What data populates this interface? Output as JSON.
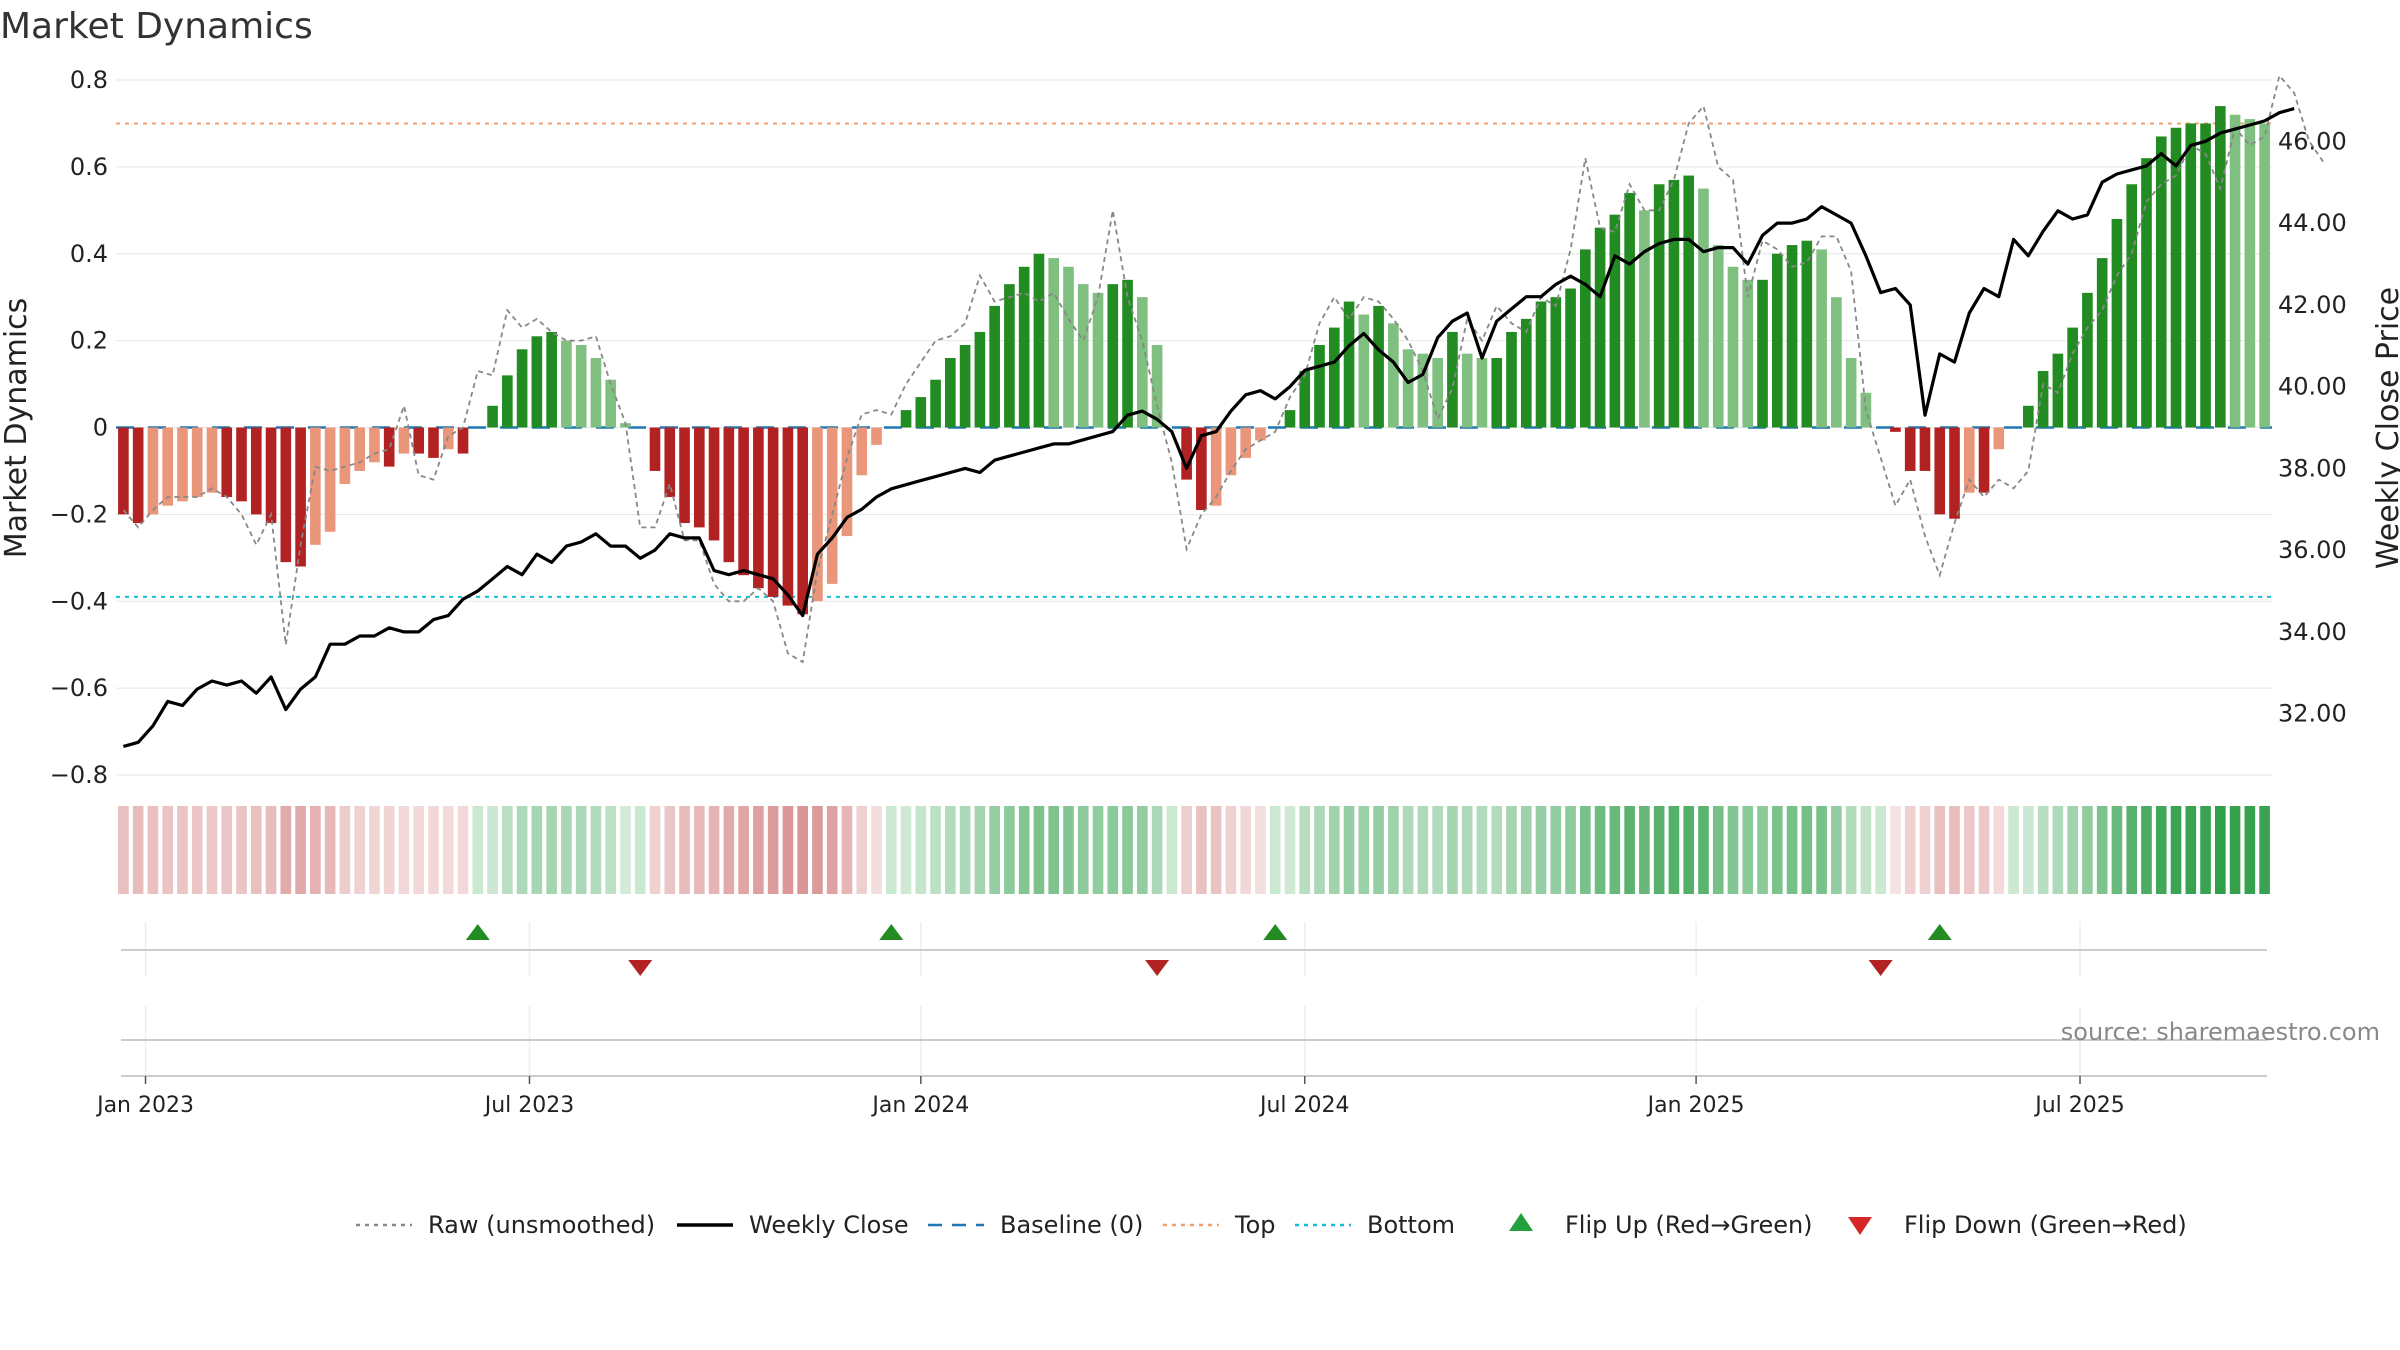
{
  "chart_data": {
    "type": "bar",
    "title": "Market Dynamics",
    "ylabel_left": "Market Dynamics",
    "ylabel_right": "Weekly Close Price",
    "source": "source: sharemaestro.com",
    "ylim_left": [
      -0.8,
      0.8
    ],
    "ylim_right": [
      30.5,
      47.5
    ],
    "left_ticks": [
      "0.8",
      "0.6",
      "0.4",
      "0.2",
      "0",
      "−0.2",
      "−0.4",
      "−0.6",
      "−0.8"
    ],
    "right_ticks": [
      "46.00",
      "44.00",
      "42.00",
      "40.00",
      "38.00",
      "36.00",
      "34.00",
      "32.00"
    ],
    "x_ticks": [
      {
        "label": "Jan 2023",
        "week": 2
      },
      {
        "label": "Jul 2023",
        "week": 28
      },
      {
        "label": "Jan 2024",
        "week": 54.5
      },
      {
        "label": "Jul 2024",
        "week": 80.5
      },
      {
        "label": "Jan 2025",
        "week": 107
      },
      {
        "label": "Jul 2025",
        "week": 133
      }
    ],
    "top_level": 0.7,
    "bottom_level": -0.39,
    "baseline": 0,
    "dynamics": [
      -0.2,
      -0.22,
      -0.2,
      -0.18,
      -0.17,
      -0.16,
      -0.15,
      -0.16,
      -0.17,
      -0.2,
      -0.22,
      -0.31,
      -0.32,
      -0.27,
      -0.24,
      -0.13,
      -0.1,
      -0.08,
      -0.09,
      -0.06,
      -0.06,
      -0.07,
      -0.05,
      -0.06,
      0,
      0.05,
      0.12,
      0.18,
      0.21,
      0.22,
      0.2,
      0.19,
      0.16,
      0.11,
      0.01,
      0,
      -0.1,
      -0.16,
      -0.22,
      -0.23,
      -0.26,
      -0.31,
      -0.34,
      -0.37,
      -0.39,
      -0.41,
      -0.43,
      -0.4,
      -0.36,
      -0.25,
      -0.11,
      -0.04,
      0,
      0.04,
      0.07,
      0.11,
      0.16,
      0.19,
      0.22,
      0.28,
      0.33,
      0.37,
      0.4,
      0.39,
      0.37,
      0.33,
      0.31,
      0.33,
      0.34,
      0.3,
      0.19,
      0,
      -0.12,
      -0.19,
      -0.18,
      -0.11,
      -0.07,
      -0.03,
      0,
      0.04,
      0.13,
      0.19,
      0.23,
      0.29,
      0.26,
      0.28,
      0.24,
      0.18,
      0.17,
      0.16,
      0.22,
      0.17,
      0.16,
      0.16,
      0.22,
      0.25,
      0.29,
      0.3,
      0.32,
      0.41,
      0.46,
      0.49,
      0.54,
      0.5,
      0.56,
      0.57,
      0.58,
      0.55,
      0.42,
      0.37,
      0.34,
      0.34,
      0.4,
      0.42,
      0.43,
      0.41,
      0.3,
      0.16,
      0.08,
      0,
      -0.01,
      -0.1,
      -0.1,
      -0.2,
      -0.21,
      -0.15,
      -0.15,
      -0.05,
      0,
      0.05,
      0.13,
      0.17,
      0.23,
      0.31,
      0.39,
      0.48,
      0.56,
      0.62,
      0.67,
      0.69,
      0.7,
      0.7,
      0.74,
      0.72,
      0.71,
      0.7
    ],
    "raw": [
      -0.19,
      -0.23,
      -0.19,
      -0.16,
      -0.16,
      -0.16,
      -0.14,
      -0.16,
      -0.2,
      -0.27,
      -0.2,
      -0.5,
      -0.27,
      -0.09,
      -0.1,
      -0.09,
      -0.08,
      -0.06,
      -0.05,
      0.05,
      -0.11,
      -0.12,
      -0.02,
      0,
      0.13,
      0.12,
      0.27,
      0.23,
      0.25,
      0.22,
      0.2,
      0.2,
      0.21,
      0.1,
      0.01,
      -0.23,
      -0.23,
      -0.13,
      -0.26,
      -0.26,
      -0.36,
      -0.4,
      -0.4,
      -0.37,
      -0.4,
      -0.52,
      -0.54,
      -0.33,
      -0.2,
      -0.07,
      0.03,
      0.04,
      0.03,
      0.1,
      0.15,
      0.2,
      0.21,
      0.24,
      0.35,
      0.29,
      0.3,
      0.31,
      0.29,
      0.31,
      0.25,
      0.2,
      0.3,
      0.5,
      0.3,
      0.2,
      0.05,
      -0.08,
      -0.28,
      -0.2,
      -0.16,
      -0.1,
      -0.05,
      -0.03,
      -0.01,
      0.07,
      0.12,
      0.24,
      0.3,
      0.25,
      0.3,
      0.29,
      0.25,
      0.2,
      0.13,
      0.02,
      0.09,
      0.25,
      0.2,
      0.28,
      0.24,
      0.22,
      0.3,
      0.28,
      0.41,
      0.62,
      0.46,
      0.45,
      0.56,
      0.5,
      0.5,
      0.57,
      0.7,
      0.74,
      0.6,
      0.57,
      0.3,
      0.43,
      0.41,
      0.37,
      0.38,
      0.44,
      0.44,
      0.36,
      0.04,
      -0.07,
      -0.18,
      -0.12,
      -0.25,
      -0.34,
      -0.22,
      -0.12,
      -0.16,
      -0.12,
      -0.14,
      -0.1,
      0.1,
      0.08,
      0.17,
      0.23,
      0.27,
      0.35,
      0.4,
      0.52,
      0.56,
      0.58,
      0.65,
      0.63,
      0.55,
      0.69,
      0.65,
      0.67,
      0.81,
      0.77,
      0.66,
      0.61
    ],
    "close": [
      31.2,
      31.3,
      31.7,
      32.3,
      32.2,
      32.6,
      32.8,
      32.7,
      32.8,
      32.5,
      32.9,
      32.1,
      32.6,
      32.9,
      33.7,
      33.7,
      33.9,
      33.9,
      34.1,
      34.0,
      34.0,
      34.3,
      34.4,
      34.8,
      35.0,
      35.3,
      35.6,
      35.4,
      35.9,
      35.7,
      36.1,
      36.2,
      36.4,
      36.1,
      36.1,
      35.8,
      36.0,
      36.4,
      36.3,
      36.3,
      35.5,
      35.4,
      35.5,
      35.4,
      35.3,
      34.9,
      34.4,
      35.9,
      36.3,
      36.8,
      37.0,
      37.3,
      37.5,
      37.6,
      37.7,
      37.8,
      37.9,
      38.0,
      37.9,
      38.2,
      38.3,
      38.4,
      38.5,
      38.6,
      38.6,
      38.7,
      38.8,
      38.9,
      39.3,
      39.4,
      39.2,
      38.9,
      38.0,
      38.8,
      38.9,
      39.4,
      39.8,
      39.9,
      39.7,
      40.0,
      40.4,
      40.5,
      40.6,
      41.0,
      41.3,
      40.9,
      40.6,
      40.1,
      40.3,
      41.2,
      41.6,
      41.8,
      40.7,
      41.6,
      41.9,
      42.2,
      42.2,
      42.5,
      42.7,
      42.5,
      42.2,
      43.2,
      43.0,
      43.3,
      43.5,
      43.6,
      43.6,
      43.3,
      43.4,
      43.4,
      43.0,
      43.7,
      44.0,
      44.0,
      44.1,
      44.4,
      44.2,
      44.0,
      43.2,
      42.3,
      42.4,
      42.0,
      39.3,
      40.8,
      40.6,
      41.8,
      42.4,
      42.2,
      43.6,
      43.2,
      43.8,
      44.3,
      44.1,
      44.2,
      45.0,
      45.2,
      45.3,
      45.4,
      45.7,
      45.4,
      45.9,
      46.0,
      46.2,
      46.3,
      46.4,
      46.5,
      46.7,
      46.8
    ],
    "flips_up": [
      24,
      52,
      78,
      123
    ],
    "flips_down": [
      35,
      70,
      119
    ],
    "legend": [
      {
        "label": "Raw (unsmoothed)",
        "style": "dotted",
        "color": "#888888"
      },
      {
        "label": "Weekly Close",
        "style": "solid",
        "color": "#000000"
      },
      {
        "label": "Baseline (0)",
        "style": "dashed",
        "color": "#1f77b4"
      },
      {
        "label": "Top",
        "style": "dotted",
        "color": "#f0a070"
      },
      {
        "label": "Bottom",
        "style": "dotted",
        "color": "#17becf"
      },
      {
        "label": "Flip Up (Red→Green)",
        "style": "triangle-up",
        "color": "#22a03c"
      },
      {
        "label": "Flip Down (Green→Red)",
        "style": "triangle-down",
        "color": "#d62728"
      }
    ],
    "colors": {
      "strong_green": "#228b22",
      "light_green": "#7fbf7f",
      "strong_red": "#b22222",
      "light_red": "#e9967a",
      "close_line": "#000000",
      "raw_line": "#888888",
      "top_line": "#f0a070",
      "bottom_line": "#17becf",
      "baseline": "#1f77b4"
    }
  }
}
